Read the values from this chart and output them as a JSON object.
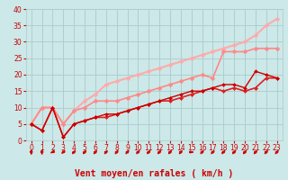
{
  "xlabel": "Vent moyen/en rafales ( km/h )",
  "xlim": [
    -0.5,
    23.5
  ],
  "ylim": [
    0,
    40
  ],
  "xticks": [
    0,
    1,
    2,
    3,
    4,
    5,
    6,
    7,
    8,
    9,
    10,
    11,
    12,
    13,
    14,
    15,
    16,
    17,
    18,
    19,
    20,
    21,
    22,
    23
  ],
  "yticks": [
    0,
    5,
    10,
    15,
    20,
    25,
    30,
    35,
    40
  ],
  "bg_color": "#cce8e8",
  "grid_color": "#aacccc",
  "series": [
    {
      "x": [
        0,
        1,
        2,
        3,
        4,
        5,
        6,
        7,
        8,
        9,
        10,
        11,
        12,
        13,
        14,
        15,
        16,
        17,
        18,
        19,
        20,
        21,
        22,
        23
      ],
      "y": [
        5,
        3,
        10,
        1,
        5,
        6,
        7,
        8,
        8,
        9,
        10,
        11,
        12,
        13,
        14,
        15,
        15,
        16,
        17,
        17,
        16,
        21,
        20,
        19
      ],
      "color": "#cc0000",
      "lw": 1.0,
      "marker": "D",
      "ms": 2.0
    },
    {
      "x": [
        0,
        1,
        2,
        3,
        4,
        5,
        6,
        7,
        8,
        9,
        10,
        11,
        12,
        13,
        14,
        15,
        16,
        17,
        18,
        19,
        20,
        21,
        22,
        23
      ],
      "y": [
        5,
        3,
        10,
        1,
        5,
        6,
        7,
        7,
        8,
        9,
        10,
        11,
        12,
        12,
        13,
        14,
        15,
        16,
        15,
        16,
        15,
        16,
        19,
        19
      ],
      "color": "#dd2222",
      "lw": 1.0,
      "marker": "D",
      "ms": 2.0
    },
    {
      "x": [
        0,
        1,
        2,
        3,
        4,
        5,
        6,
        7,
        8,
        9,
        10,
        11,
        12,
        13,
        14,
        15,
        16,
        17,
        18,
        19,
        20,
        21,
        22,
        23
      ],
      "y": [
        5,
        3,
        10,
        1,
        5,
        6,
        7,
        7,
        8,
        9,
        10,
        11,
        12,
        12,
        13,
        14,
        15,
        16,
        15,
        16,
        15,
        16,
        19,
        19
      ],
      "color": "#ee4444",
      "lw": 1.0,
      "marker": "D",
      "ms": 2.0
    },
    {
      "x": [
        0,
        1,
        2,
        3,
        4,
        5,
        6,
        7,
        8,
        9,
        10,
        11,
        12,
        13,
        14,
        15,
        16,
        17,
        18,
        19,
        20,
        21,
        22,
        23
      ],
      "y": [
        5,
        10,
        10,
        5,
        9,
        10,
        12,
        12,
        12,
        13,
        14,
        15,
        16,
        17,
        18,
        19,
        20,
        19,
        27,
        27,
        27,
        28,
        28,
        28
      ],
      "color": "#ff8888",
      "lw": 1.2,
      "marker": "D",
      "ms": 2.5
    },
    {
      "x": [
        0,
        1,
        2,
        3,
        4,
        5,
        6,
        7,
        8,
        9,
        10,
        11,
        12,
        13,
        14,
        15,
        16,
        17,
        18,
        19,
        20,
        21,
        22,
        23
      ],
      "y": [
        5,
        10,
        10,
        5,
        9,
        12,
        14,
        17,
        18,
        19,
        20,
        21,
        22,
        23,
        24,
        25,
        26,
        27,
        28,
        29,
        30,
        32,
        35,
        37
      ],
      "color": "#ffaaaa",
      "lw": 1.5,
      "marker": "D",
      "ms": 2.5
    }
  ],
  "arrow_angles": [
    90,
    90,
    200,
    220,
    45,
    45,
    45,
    45,
    45,
    45,
    45,
    45,
    45,
    45,
    45,
    0,
    45,
    45,
    45,
    45,
    45,
    45,
    45,
    45
  ],
  "xlabel_color": "#cc0000",
  "xlabel_fontsize": 7,
  "tick_color": "#cc0000",
  "tick_fontsize": 5.5,
  "arrow_color": "#cc0000"
}
